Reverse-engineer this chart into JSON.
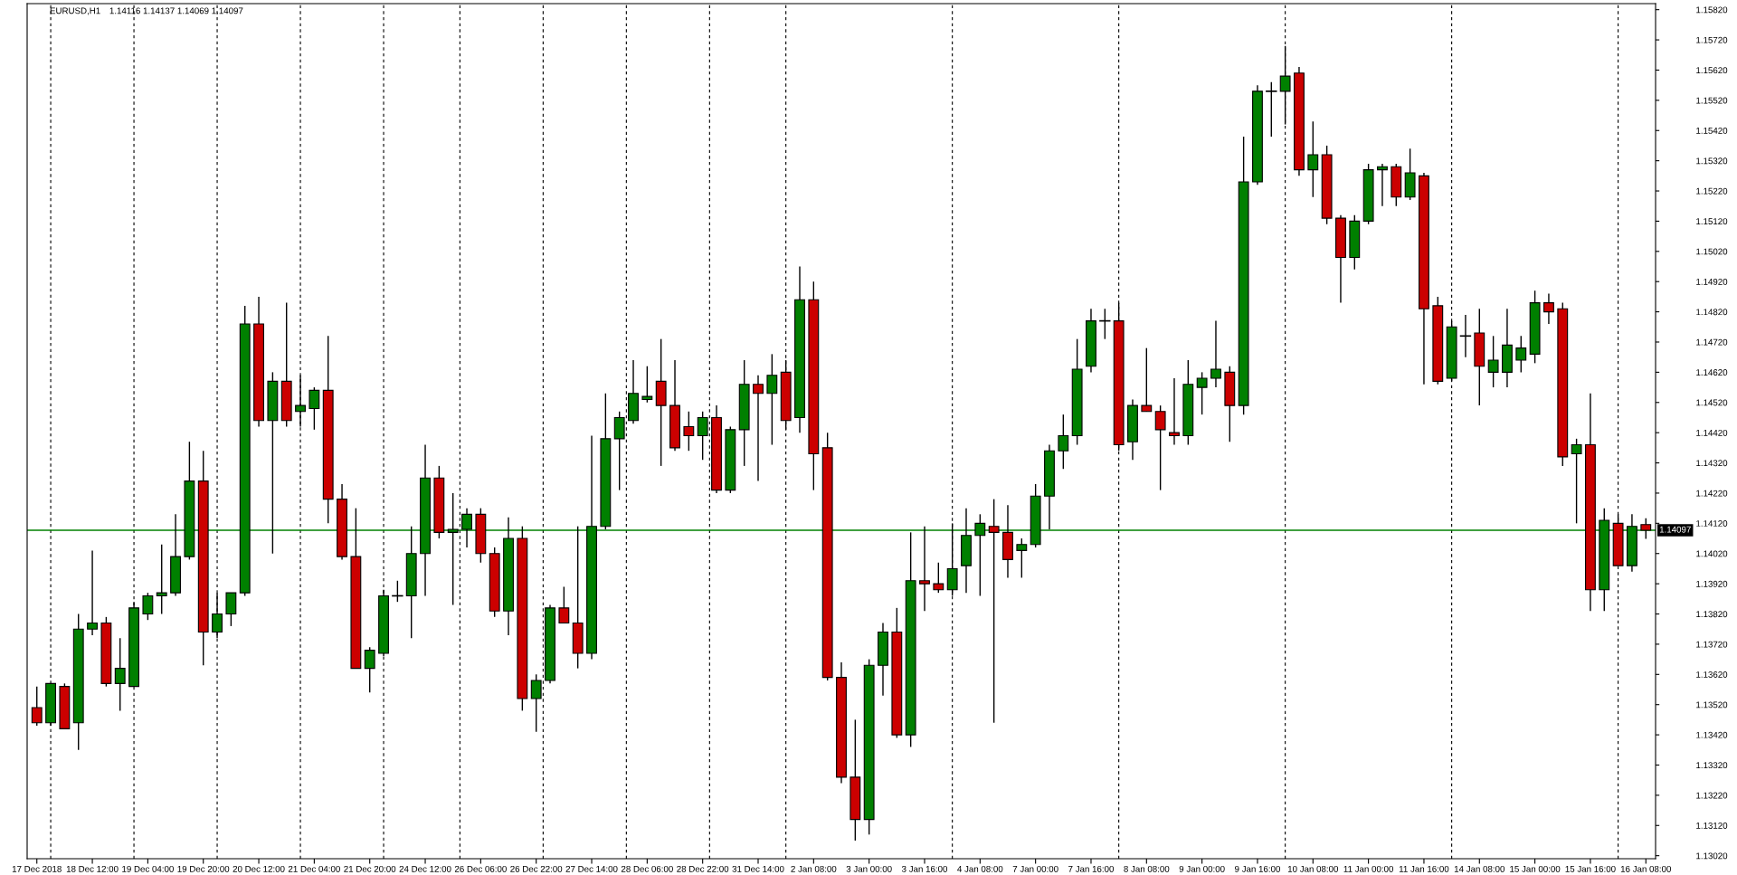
{
  "chart_data": {
    "type": "candlestick",
    "title": "EURUSD,H1",
    "subtitle": "1.14116 1.14137 1.14069 1.14097",
    "categories": [
      "17 Dec 2018",
      null,
      null,
      null,
      "18 Dec 12:00",
      null,
      null,
      null,
      "19 Dec 04:00",
      null,
      null,
      null,
      "19 Dec 20:00",
      null,
      null,
      null,
      "20 Dec 12:00",
      null,
      null,
      null,
      "21 Dec 04:00",
      null,
      null,
      null,
      "21 Dec 20:00",
      null,
      null,
      null,
      "24 Dec 12:00",
      null,
      null,
      null,
      "26 Dec 06:00",
      null,
      null,
      null,
      "26 Dec 22:00",
      null,
      null,
      null,
      "27 Dec 14:00",
      null,
      null,
      null,
      "28 Dec 06:00",
      null,
      null,
      null,
      "28 Dec 22:00",
      null,
      null,
      null,
      "31 Dec 14:00",
      null,
      null,
      null,
      "2 Jan 08:00",
      null,
      null,
      null,
      "3 Jan 00:00",
      null,
      null,
      null,
      "3 Jan 16:00",
      null,
      null,
      null,
      "4 Jan 08:00",
      null,
      null,
      null,
      "7 Jan 00:00",
      null,
      null,
      null,
      "7 Jan 16:00",
      null,
      null,
      null,
      "8 Jan 08:00",
      null,
      null,
      null,
      "9 Jan 00:00",
      null,
      null,
      null,
      "9 Jan 16:00",
      null,
      null,
      null,
      "10 Jan 08:00",
      null,
      null,
      null,
      "11 Jan 00:00",
      null,
      null,
      null,
      "11 Jan 16:00",
      null,
      null,
      null,
      "14 Jan 08:00",
      null,
      null,
      null,
      "15 Jan 00:00",
      null,
      null,
      null,
      "15 Jan 16:00",
      null,
      null,
      null,
      "16 Jan 08:00"
    ],
    "ohlc": [
      [
        1.1351,
        1.1358,
        1.1345,
        1.1346
      ],
      [
        1.1346,
        1.1359,
        1.1345,
        1.1359
      ],
      [
        1.1358,
        1.1359,
        1.1344,
        1.1344
      ],
      [
        1.1346,
        1.1382,
        1.1337,
        1.1377
      ],
      [
        1.1377,
        1.1403,
        1.1375,
        1.1379
      ],
      [
        1.1379,
        1.1381,
        1.1358,
        1.1359
      ],
      [
        1.1359,
        1.1374,
        1.135,
        1.1364
      ],
      [
        1.1358,
        1.1386,
        1.1358,
        1.1384
      ],
      [
        1.1382,
        1.1389,
        1.138,
        1.1388
      ],
      [
        1.1388,
        1.1405,
        1.1382,
        1.1389
      ],
      [
        1.1389,
        1.1415,
        1.1388,
        1.1401
      ],
      [
        1.1401,
        1.1439,
        1.14,
        1.1426
      ],
      [
        1.1426,
        1.1436,
        1.1365,
        1.1376
      ],
      [
        1.1376,
        1.1389,
        1.1374,
        1.1382
      ],
      [
        1.1382,
        1.1389,
        1.1378,
        1.1389
      ],
      [
        1.1389,
        1.1484,
        1.1388,
        1.1478
      ],
      [
        1.1478,
        1.1487,
        1.1444,
        1.1446
      ],
      [
        1.1446,
        1.1462,
        1.1402,
        1.1459
      ],
      [
        1.1459,
        1.1485,
        1.1444,
        1.1446
      ],
      [
        1.1449,
        1.1461,
        1.1444,
        1.1451
      ],
      [
        1.145,
        1.1457,
        1.1443,
        1.1456
      ],
      [
        1.1456,
        1.1474,
        1.1412,
        1.142
      ],
      [
        1.142,
        1.1425,
        1.14,
        1.1401
      ],
      [
        1.1401,
        1.1417,
        1.1364,
        1.1364
      ],
      [
        1.1364,
        1.1371,
        1.1356,
        1.137
      ],
      [
        1.1369,
        1.139,
        1.1368,
        1.1388
      ],
      [
        1.1388,
        1.1393,
        1.1386,
        1.1388
      ],
      [
        1.1388,
        1.1411,
        1.1374,
        1.1402
      ],
      [
        1.1402,
        1.1438,
        1.1388,
        1.1427
      ],
      [
        1.1427,
        1.1431,
        1.1407,
        1.1409
      ],
      [
        1.1409,
        1.1422,
        1.1385,
        1.141
      ],
      [
        1.141,
        1.1417,
        1.1404,
        1.1415
      ],
      [
        1.1415,
        1.1417,
        1.1399,
        1.1402
      ],
      [
        1.1402,
        1.1404,
        1.1381,
        1.1383
      ],
      [
        1.1383,
        1.1414,
        1.1375,
        1.1407
      ],
      [
        1.1407,
        1.1411,
        1.135,
        1.1354
      ],
      [
        1.1354,
        1.1362,
        1.1343,
        1.136
      ],
      [
        1.136,
        1.1385,
        1.1359,
        1.1384
      ],
      [
        1.1384,
        1.1391,
        1.1379,
        1.1379
      ],
      [
        1.1379,
        1.1411,
        1.1364,
        1.1369
      ],
      [
        1.1369,
        1.1441,
        1.1367,
        1.1411
      ],
      [
        1.1411,
        1.1455,
        1.141,
        1.144
      ],
      [
        1.144,
        1.1449,
        1.1423,
        1.1447
      ],
      [
        1.1446,
        1.1466,
        1.1445,
        1.1455
      ],
      [
        1.1453,
        1.1464,
        1.1452,
        1.1454
      ],
      [
        1.1459,
        1.1473,
        1.1431,
        1.1451
      ],
      [
        1.1451,
        1.1466,
        1.1436,
        1.1437
      ],
      [
        1.1444,
        1.1449,
        1.1436,
        1.1441
      ],
      [
        1.1441,
        1.1449,
        1.1433,
        1.1447
      ],
      [
        1.1447,
        1.1451,
        1.1422,
        1.1423
      ],
      [
        1.1423,
        1.1444,
        1.1422,
        1.1443
      ],
      [
        1.1443,
        1.1466,
        1.1431,
        1.1458
      ],
      [
        1.1458,
        1.1461,
        1.1426,
        1.1455
      ],
      [
        1.1455,
        1.1468,
        1.1438,
        1.1461
      ],
      [
        1.1462,
        1.1466,
        1.1443,
        1.1446
      ],
      [
        1.1447,
        1.1497,
        1.1442,
        1.1486
      ],
      [
        1.1486,
        1.1492,
        1.1423,
        1.1435
      ],
      [
        1.1437,
        1.1442,
        1.136,
        1.1361
      ],
      [
        1.1361,
        1.1366,
        1.1326,
        1.1328
      ],
      [
        1.1328,
        1.1347,
        1.1307,
        1.1314
      ],
      [
        1.1314,
        1.1367,
        1.1309,
        1.1365
      ],
      [
        1.1365,
        1.1379,
        1.1355,
        1.1376
      ],
      [
        1.1376,
        1.1384,
        1.1341,
        1.1342
      ],
      [
        1.1342,
        1.1409,
        1.1338,
        1.1393
      ],
      [
        1.1393,
        1.1411,
        1.1383,
        1.1392
      ],
      [
        1.1392,
        1.1399,
        1.1389,
        1.139
      ],
      [
        1.139,
        1.1412,
        1.1388,
        1.1397
      ],
      [
        1.1398,
        1.1417,
        1.1389,
        1.1408
      ],
      [
        1.1408,
        1.1415,
        1.1388,
        1.1412
      ],
      [
        1.1411,
        1.142,
        1.1346,
        1.1409
      ],
      [
        1.1409,
        1.1418,
        1.1394,
        1.14
      ],
      [
        1.1403,
        1.1407,
        1.1394,
        1.1405
      ],
      [
        1.1405,
        1.1425,
        1.1404,
        1.1421
      ],
      [
        1.1421,
        1.1438,
        1.141,
        1.1436
      ],
      [
        1.1436,
        1.1448,
        1.143,
        1.1441
      ],
      [
        1.1441,
        1.1473,
        1.1438,
        1.1463
      ],
      [
        1.1464,
        1.1483,
        1.1462,
        1.1479
      ],
      [
        1.1479,
        1.1483,
        1.1473,
        1.1479
      ],
      [
        1.1479,
        1.1485,
        1.1436,
        1.1438
      ],
      [
        1.1439,
        1.1453,
        1.1433,
        1.1451
      ],
      [
        1.1451,
        1.147,
        1.1449,
        1.1449
      ],
      [
        1.1449,
        1.1451,
        1.1423,
        1.1443
      ],
      [
        1.1442,
        1.146,
        1.1438,
        1.1441
      ],
      [
        1.1441,
        1.1466,
        1.1438,
        1.1458
      ],
      [
        1.1457,
        1.1462,
        1.1448,
        1.146
      ],
      [
        1.146,
        1.1479,
        1.1457,
        1.1463
      ],
      [
        1.1462,
        1.1464,
        1.1439,
        1.1451
      ],
      [
        1.1451,
        1.154,
        1.1448,
        1.1525
      ],
      [
        1.1525,
        1.1557,
        1.1524,
        1.1555
      ],
      [
        1.1555,
        1.1558,
        1.154,
        1.1555
      ],
      [
        1.1555,
        1.157,
        1.1544,
        1.156
      ],
      [
        1.1561,
        1.1563,
        1.1527,
        1.1529
      ],
      [
        1.1529,
        1.1545,
        1.152,
        1.1534
      ],
      [
        1.1534,
        1.1537,
        1.1511,
        1.1513
      ],
      [
        1.1513,
        1.1514,
        1.1485,
        1.15
      ],
      [
        1.15,
        1.1514,
        1.1496,
        1.1512
      ],
      [
        1.1512,
        1.1531,
        1.1511,
        1.1529
      ],
      [
        1.1529,
        1.1531,
        1.1517,
        1.153
      ],
      [
        1.153,
        1.1531,
        1.1517,
        1.152
      ],
      [
        1.152,
        1.1536,
        1.1519,
        1.1528
      ],
      [
        1.1527,
        1.1528,
        1.1458,
        1.1483
      ],
      [
        1.1484,
        1.1487,
        1.1458,
        1.1459
      ],
      [
        1.146,
        1.1479,
        1.1459,
        1.1477
      ],
      [
        1.1474,
        1.1481,
        1.1467,
        1.1474
      ],
      [
        1.1475,
        1.1483,
        1.1451,
        1.1464
      ],
      [
        1.1462,
        1.1474,
        1.1457,
        1.1466
      ],
      [
        1.1462,
        1.1483,
        1.1457,
        1.1471
      ],
      [
        1.1466,
        1.1474,
        1.1462,
        1.147
      ],
      [
        1.1468,
        1.1489,
        1.1465,
        1.1485
      ],
      [
        1.1485,
        1.1488,
        1.1478,
        1.1482
      ],
      [
        1.1483,
        1.1485,
        1.1431,
        1.1434
      ],
      [
        1.1435,
        1.144,
        1.1412,
        1.1438
      ],
      [
        1.1438,
        1.1455,
        1.1383,
        1.139
      ],
      [
        1.139,
        1.1417,
        1.1383,
        1.1413
      ],
      [
        1.1412,
        1.1415,
        1.1398,
        1.1398
      ],
      [
        1.1398,
        1.1415,
        1.1396,
        1.1411
      ],
      [
        1.14116,
        1.14137,
        1.14069,
        1.14097
      ]
    ],
    "colors": [
      "#cc0000",
      "#008000",
      "#cc0000",
      "#008000",
      "#008000",
      "#cc0000",
      "#008000",
      "#008000",
      "#008000",
      "#008000",
      "#008000",
      "#008000",
      "#cc0000",
      "#008000",
      "#008000",
      "#008000",
      "#cc0000",
      "#008000",
      "#cc0000",
      "#008000",
      "#008000",
      "#cc0000",
      "#cc0000",
      "#cc0000",
      "#008000",
      "#008000",
      "#000000",
      "#008000",
      "#008000",
      "#cc0000",
      "#008000",
      "#008000",
      "#cc0000",
      "#cc0000",
      "#008000",
      "#cc0000",
      "#008000",
      "#008000",
      "#cc0000",
      "#cc0000",
      "#008000",
      "#008000",
      "#008000",
      "#008000",
      "#008000",
      "#cc0000",
      "#cc0000",
      "#cc0000",
      "#008000",
      "#cc0000",
      "#008000",
      "#008000",
      "#cc0000",
      "#008000",
      "#cc0000",
      "#008000",
      "#cc0000",
      "#cc0000",
      "#cc0000",
      "#cc0000",
      "#008000",
      "#008000",
      "#cc0000",
      "#008000",
      "#cc0000",
      "#cc0000",
      "#008000",
      "#008000",
      "#008000",
      "#cc0000",
      "#cc0000",
      "#008000",
      "#008000",
      "#008000",
      "#008000",
      "#008000",
      "#008000",
      "#000000",
      "#cc0000",
      "#008000",
      "#cc0000",
      "#cc0000",
      "#cc0000",
      "#008000",
      "#008000",
      "#008000",
      "#cc0000",
      "#008000",
      "#008000",
      "#000000",
      "#008000",
      "#cc0000",
      "#008000",
      "#cc0000",
      "#cc0000",
      "#008000",
      "#008000",
      "#008000",
      "#cc0000",
      "#008000",
      "#cc0000",
      "#cc0000",
      "#008000",
      "#000000",
      "#cc0000",
      "#008000",
      "#008000",
      "#008000",
      "#008000",
      "#cc0000",
      "#cc0000",
      "#008000",
      "#cc0000",
      "#008000",
      "#cc0000",
      "#008000",
      "#cc0000"
    ],
    "ylim": [
      1.1301,
      1.1584
    ],
    "yticks": [
      {
        "value": 1.1582,
        "label": "1.15820"
      },
      {
        "value": 1.1572,
        "label": "1.15720"
      },
      {
        "value": 1.1562,
        "label": "1.15620"
      },
      {
        "value": 1.1552,
        "label": "1.15520"
      },
      {
        "value": 1.1542,
        "label": "1.15420"
      },
      {
        "value": 1.1532,
        "label": "1.15320"
      },
      {
        "value": 1.1522,
        "label": "1.15220"
      },
      {
        "value": 1.1512,
        "label": "1.15120"
      },
      {
        "value": 1.1502,
        "label": "1.15020"
      },
      {
        "value": 1.1492,
        "label": "1.14920"
      },
      {
        "value": 1.1482,
        "label": "1.14820"
      },
      {
        "value": 1.1472,
        "label": "1.14720"
      },
      {
        "value": 1.1462,
        "label": "1.14620"
      },
      {
        "value": 1.1452,
        "label": "1.14520"
      },
      {
        "value": 1.1442,
        "label": "1.14420"
      },
      {
        "value": 1.1432,
        "label": "1.14320"
      },
      {
        "value": 1.1422,
        "label": "1.14220"
      },
      {
        "value": 1.1412,
        "label": "1.14120"
      },
      {
        "value": 1.1402,
        "label": "1.14020"
      },
      {
        "value": 1.1392,
        "label": "1.13920"
      },
      {
        "value": 1.1382,
        "label": "1.13820"
      },
      {
        "value": 1.1372,
        "label": "1.13720"
      },
      {
        "value": 1.1362,
        "label": "1.13620"
      },
      {
        "value": 1.1352,
        "label": "1.13520"
      },
      {
        "value": 1.1342,
        "label": "1.13420"
      },
      {
        "value": 1.1332,
        "label": "1.13320"
      },
      {
        "value": 1.1322,
        "label": "1.13220"
      },
      {
        "value": 1.1312,
        "label": "1.13120"
      },
      {
        "value": 1.1302,
        "label": "1.13020"
      }
    ],
    "grid": "x",
    "ref_lines": [
      {
        "axis": "y",
        "value": 1.14097,
        "label": "1.14097",
        "color": "#008000",
        "line_style": "solid"
      }
    ]
  }
}
